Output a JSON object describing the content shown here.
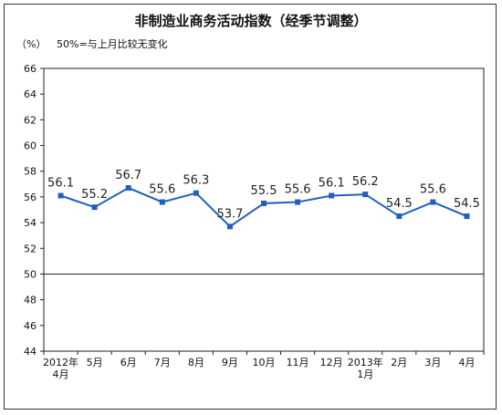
{
  "chart_data": {
    "type": "line",
    "title": "非制造业商务活动指数（经季节调整）",
    "unit_label": "（%）",
    "note": "50%=与上月比较无变化",
    "categories": [
      [
        "2012年",
        "4月"
      ],
      [
        "5月"
      ],
      [
        "6月"
      ],
      [
        "7月"
      ],
      [
        "8月"
      ],
      [
        "9月"
      ],
      [
        "10月"
      ],
      [
        "11月"
      ],
      [
        "12月"
      ],
      [
        "2013年",
        "1月"
      ],
      [
        "2月"
      ],
      [
        "3月"
      ],
      [
        "4月"
      ]
    ],
    "values": [
      56.1,
      55.2,
      56.7,
      55.6,
      56.3,
      53.7,
      55.5,
      55.6,
      56.1,
      56.2,
      54.5,
      55.6,
      54.5
    ],
    "value_labels": [
      "56.1",
      "55.2",
      "56.7",
      "55.6",
      "56.3",
      "53.7",
      "55.5",
      "55.6",
      "56.1",
      "56.2",
      "54.5",
      "55.6",
      "54.5"
    ],
    "ylim": [
      44,
      66
    ],
    "yticks": [
      44,
      46,
      48,
      50,
      52,
      54,
      56,
      58,
      60,
      62,
      64,
      66
    ],
    "baseline": 50,
    "grid": false,
    "colors": {
      "line": "#1f5fbf",
      "marker": "#1f5fbf",
      "axis": "#222222"
    }
  }
}
